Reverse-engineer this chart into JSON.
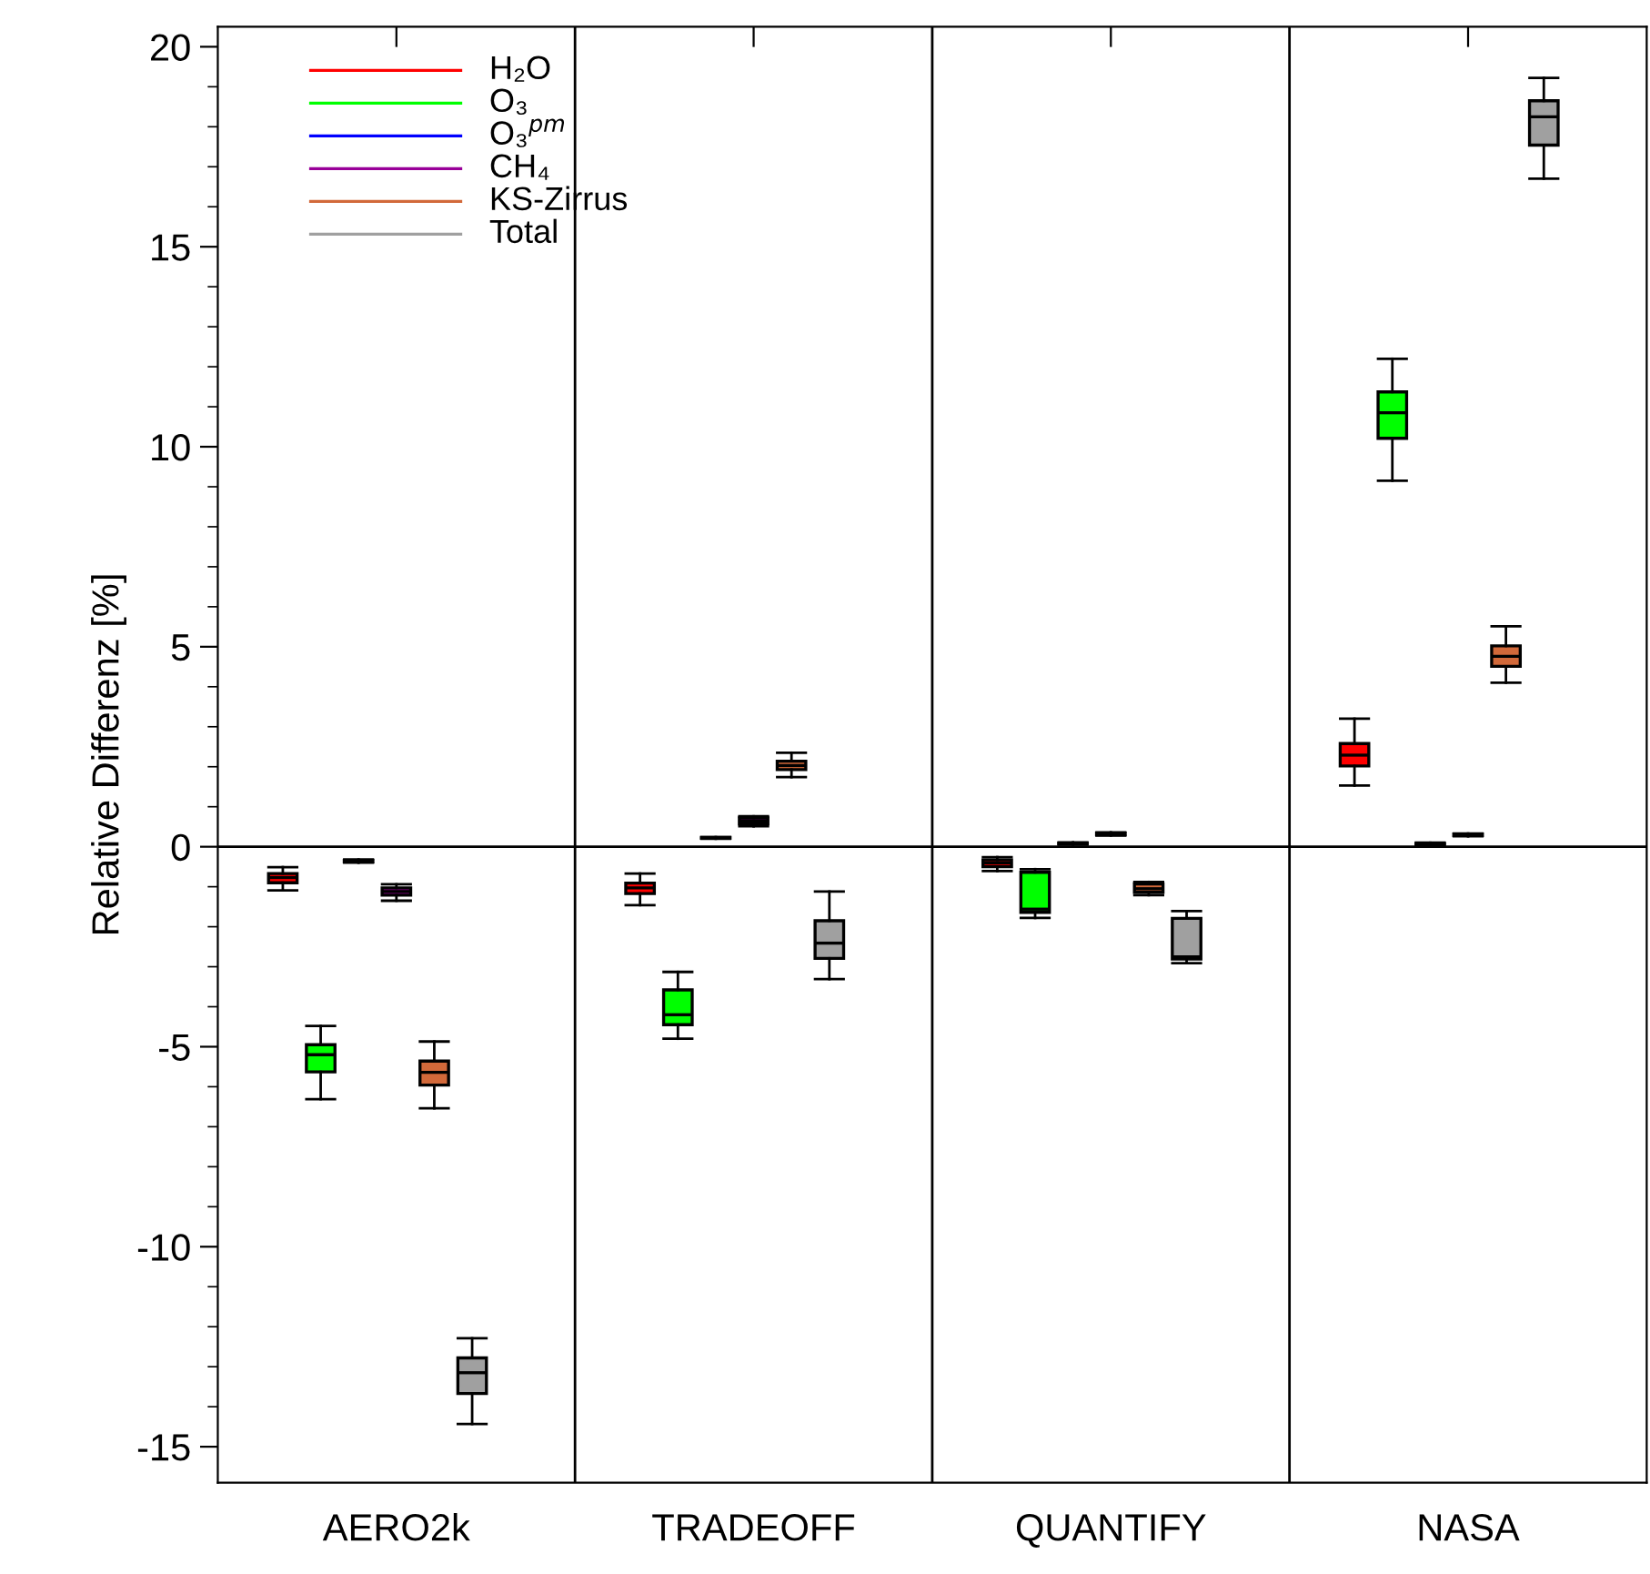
{
  "chart_data": {
    "type": "box",
    "ylabel": "Relative Differenz [%]",
    "categories": [
      "AERO2k",
      "TRADEOFF",
      "QUANTIFY",
      "NASA"
    ],
    "ylim": [
      -15.9,
      20.5
    ],
    "yticks": [
      -15,
      -10,
      -5,
      0,
      5,
      10,
      15,
      20
    ],
    "legend": "top left",
    "grid": false,
    "ref_lines": [
      {
        "axis": "y",
        "value": 0
      }
    ],
    "series": [
      {
        "name": "H₂O",
        "color": "#ff0000",
        "boxes": [
          {
            "low": -1.09,
            "q1": -0.9,
            "median": -0.77,
            "q3": -0.67,
            "high": -0.51
          },
          {
            "low": -1.46,
            "q1": -1.17,
            "median": -1.03,
            "q3": -0.91,
            "high": -0.67
          },
          {
            "low": -0.61,
            "q1": -0.5,
            "median": -0.41,
            "q3": -0.33,
            "high": -0.26
          },
          {
            "low": 1.53,
            "q1": 2.02,
            "median": 2.29,
            "q3": 2.58,
            "high": 3.2
          }
        ]
      },
      {
        "name": "O₃",
        "color": "#00ff00",
        "boxes": [
          {
            "low": -6.31,
            "q1": -5.63,
            "median": -5.2,
            "q3": -4.95,
            "high": -4.48
          },
          {
            "low": -4.8,
            "q1": -4.45,
            "median": -4.2,
            "q3": -3.58,
            "high": -3.13
          },
          {
            "low": -1.78,
            "q1": -1.64,
            "median": -1.56,
            "q3": -0.64,
            "high": -0.56
          },
          {
            "low": 9.15,
            "q1": 10.21,
            "median": 10.85,
            "q3": 11.37,
            "high": 12.2
          }
        ]
      },
      {
        "name": "O₃$^{pm}$",
        "color": "#0000ff",
        "boxes": [
          {
            "low": -0.4,
            "q1": -0.38,
            "median": -0.36,
            "q3": -0.34,
            "high": -0.32
          },
          {
            "low": 0.2,
            "q1": 0.21,
            "median": 0.22,
            "q3": 0.23,
            "high": 0.24
          },
          {
            "low": 0.05,
            "q1": 0.07,
            "median": 0.08,
            "q3": 0.09,
            "high": 0.11
          },
          {
            "low": 0.04,
            "q1": 0.06,
            "median": 0.07,
            "q3": 0.08,
            "high": 0.1
          }
        ]
      },
      {
        "name": "CH₄",
        "color": "#990099",
        "boxes": [
          {
            "low": -1.35,
            "q1": -1.21,
            "median": -1.12,
            "q3": -1.03,
            "high": -0.94
          },
          {
            "low": 0.51,
            "q1": 0.57,
            "median": 0.64,
            "q3": 0.72,
            "high": 0.76
          },
          {
            "low": 0.28,
            "q1": 0.3,
            "median": 0.32,
            "q3": 0.34,
            "high": 0.36
          },
          {
            "low": 0.26,
            "q1": 0.28,
            "median": 0.3,
            "q3": 0.32,
            "high": 0.33
          }
        ]
      },
      {
        "name": "KS-Zirrus",
        "color": "#d2693a",
        "boxes": [
          {
            "low": -6.54,
            "q1": -5.96,
            "median": -5.64,
            "q3": -5.36,
            "high": -4.87
          },
          {
            "low": 1.74,
            "q1": 1.93,
            "median": 2.03,
            "q3": 2.14,
            "high": 2.35
          },
          {
            "low": -1.21,
            "q1": -1.14,
            "median": -1.05,
            "q3": -0.93,
            "high": -0.88
          },
          {
            "low": 4.1,
            "q1": 4.51,
            "median": 4.76,
            "q3": 5.02,
            "high": 5.51
          }
        ]
      },
      {
        "name": "Total",
        "color": "#a0a0a0",
        "boxes": [
          {
            "low": -14.43,
            "q1": -13.67,
            "median": -13.15,
            "q3": -12.78,
            "high": -12.29
          },
          {
            "low": -3.31,
            "q1": -2.79,
            "median": -2.41,
            "q3": -1.85,
            "high": -1.12
          },
          {
            "low": -2.91,
            "q1": -2.81,
            "median": -2.75,
            "q3": -1.79,
            "high": -1.61
          },
          {
            "low": 16.7,
            "q1": 17.54,
            "median": 18.25,
            "q3": 18.65,
            "high": 19.22
          }
        ]
      }
    ]
  }
}
